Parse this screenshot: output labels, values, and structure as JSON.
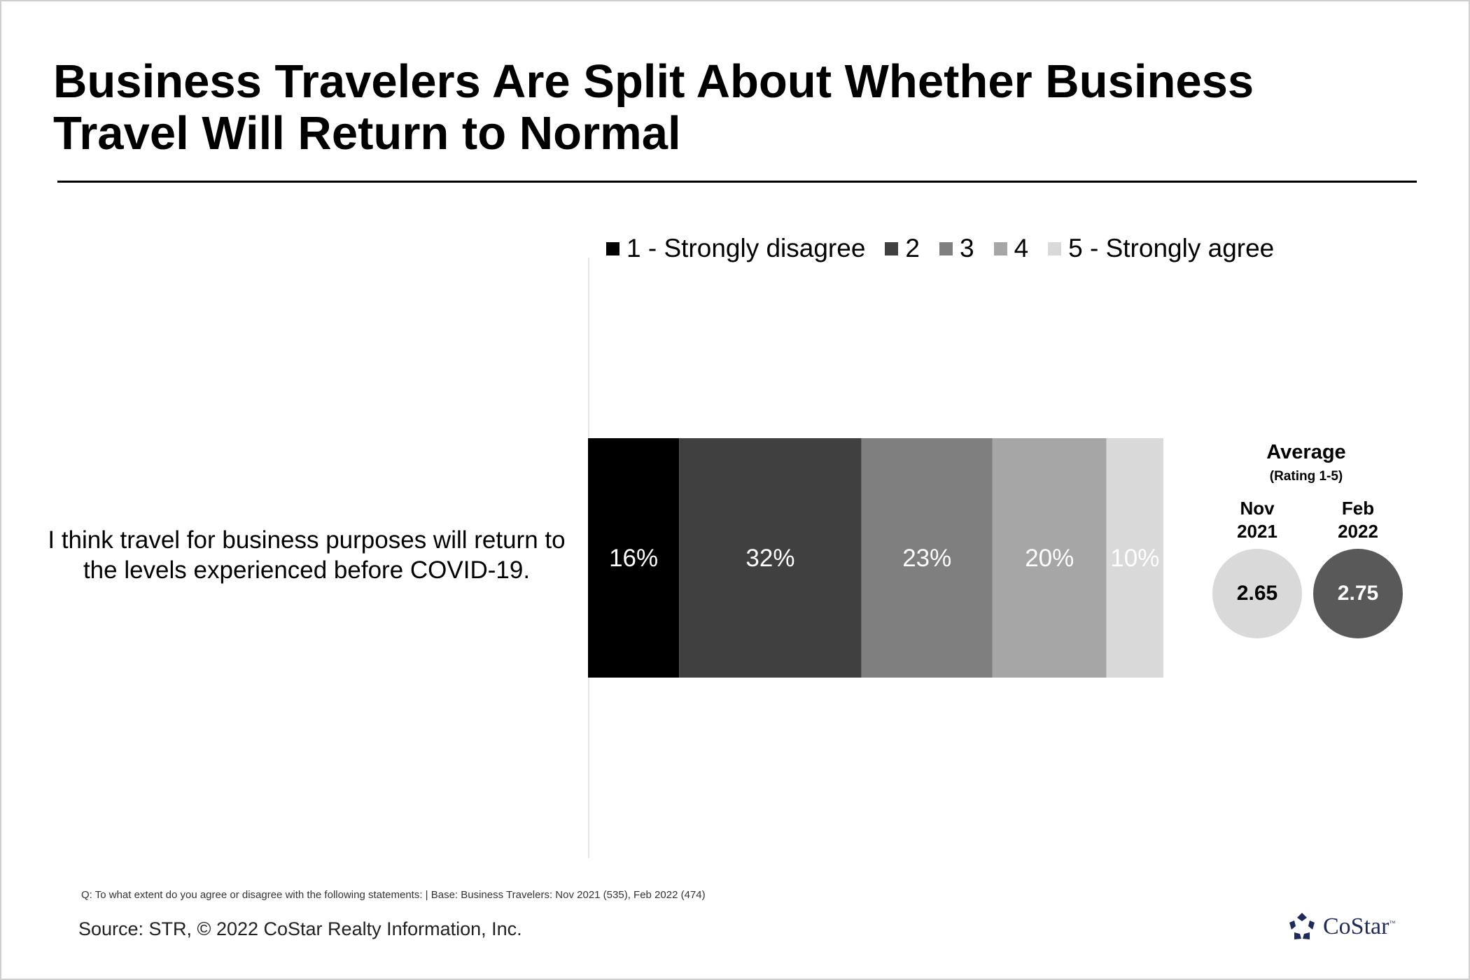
{
  "title": "Business Travelers Are Split About Whether Business Travel Will Return to Normal",
  "chart_data": {
    "type": "bar",
    "orientation": "horizontal",
    "stacked": true,
    "categories": [
      "I think travel for business purposes will return to the levels experienced before COVID-19."
    ],
    "series": [
      {
        "name": "1 - Strongly disagree",
        "values": [
          16
        ],
        "color": "#000000",
        "label": "16%"
      },
      {
        "name": "2",
        "values": [
          32
        ],
        "color": "#404040",
        "label": "32%"
      },
      {
        "name": "3",
        "values": [
          23
        ],
        "color": "#7f7f7f",
        "label": "23%"
      },
      {
        "name": "4",
        "values": [
          20
        ],
        "color": "#a6a6a6",
        "label": "20%"
      },
      {
        "name": "5 - Strongly agree",
        "values": [
          10
        ],
        "color": "#d9d9d9",
        "label": "10%"
      }
    ],
    "legend_position": "top",
    "grid": false,
    "xlim": [
      0,
      101
    ]
  },
  "average": {
    "title": "Average",
    "subtitle": "(Rating 1-5)",
    "items": [
      {
        "period_line1": "Nov",
        "period_line2": "2021",
        "value": "2.65",
        "circle_color": "#d9d9d9",
        "text_color": "#000000"
      },
      {
        "period_line1": "Feb",
        "period_line2": "2022",
        "value": "2.75",
        "circle_color": "#595959",
        "text_color": "#ffffff"
      }
    ]
  },
  "footnote": "Q: To what extent do you agree or disagree with the following statements: | Base: Business Travelers: Nov 2021 (535), Feb 2022 (474)",
  "source": "Source: STR, © 2022  CoStar Realty Information, Inc.",
  "logo": {
    "text": "CoStar",
    "mark": "™",
    "color": "#1f2a5a"
  }
}
